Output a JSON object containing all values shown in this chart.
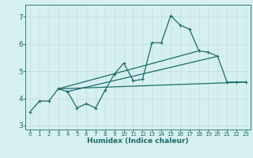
{
  "xlabel": "Humidex (Indice chaleur)",
  "background_color": "#d6f0ef",
  "grid_color": "#c4e0de",
  "line_color": "#1a6b6b",
  "xlim": [
    -0.5,
    23.5
  ],
  "ylim": [
    2.85,
    7.45
  ],
  "yticks": [
    3,
    4,
    5,
    6,
    7
  ],
  "xticks": [
    0,
    1,
    2,
    3,
    4,
    5,
    6,
    7,
    8,
    9,
    10,
    11,
    12,
    13,
    14,
    15,
    16,
    17,
    18,
    19,
    20,
    21,
    22,
    23
  ],
  "main_series": [
    [
      0,
      3.5
    ],
    [
      1,
      3.9
    ],
    [
      2,
      3.9
    ],
    [
      3,
      4.35
    ],
    [
      4,
      4.25
    ],
    [
      5,
      3.65
    ],
    [
      6,
      3.8
    ],
    [
      7,
      3.65
    ],
    [
      8,
      4.3
    ],
    [
      9,
      4.9
    ],
    [
      10,
      5.3
    ],
    [
      11,
      4.65
    ],
    [
      12,
      4.7
    ],
    [
      13,
      6.05
    ],
    [
      14,
      6.05
    ],
    [
      15,
      7.05
    ],
    [
      16,
      6.7
    ],
    [
      17,
      6.55
    ],
    [
      18,
      5.75
    ],
    [
      19,
      5.7
    ],
    [
      20,
      5.55
    ],
    [
      21,
      4.6
    ],
    [
      22,
      4.6
    ],
    [
      23,
      4.6
    ]
  ],
  "trend_lines": [
    [
      [
        3,
        4.35
      ],
      [
        23,
        4.6
      ]
    ],
    [
      [
        3,
        4.35
      ],
      [
        18,
        5.75
      ]
    ],
    [
      [
        4,
        4.25
      ],
      [
        20,
        5.55
      ]
    ]
  ]
}
